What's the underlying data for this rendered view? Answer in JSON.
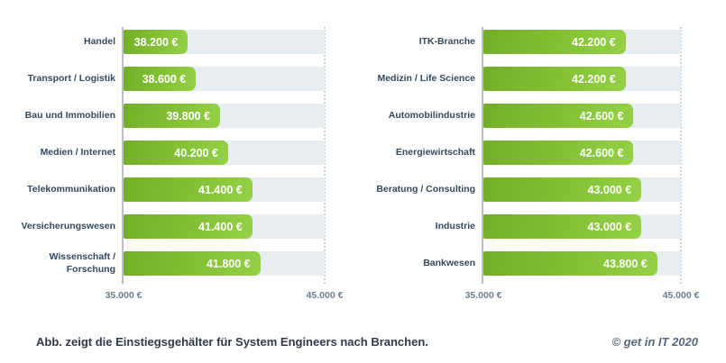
{
  "page": {
    "caption": "Abb. zeigt die Einstiegsgehälter für System Engineers nach Branchen.",
    "copyright": "© get in IT 2020"
  },
  "axis": {
    "min": 35000,
    "max": 45000,
    "min_label": "35.000 €",
    "max_label": "45.000 €"
  },
  "colors": {
    "bar_gradient_start": "#72ae29",
    "bar_gradient_end": "#95d147",
    "track": "#e8edf2",
    "category_text": "#34495e",
    "value_text": "#ffffff",
    "axis_text": "#6b7d8f",
    "caption_text": "#2f3b49",
    "copyright_text": "#55677c"
  },
  "chart_data": [
    {
      "type": "bar",
      "orientation": "horizontal",
      "title": "",
      "categories": [
        "Handel",
        "Transport / Logistik",
        "Bau und Immobilien",
        "Medien / Internet",
        "Telekommunikation",
        "Versicherungswesen",
        "Wissenschaft / Forschung"
      ],
      "values": [
        38200,
        38600,
        39800,
        40200,
        41400,
        41400,
        41800
      ],
      "value_labels": [
        "38.200 €",
        "38.600 €",
        "39.800 €",
        "40.200 €",
        "41.400 €",
        "41.400 €",
        "41.800 €"
      ],
      "xlim": [
        35000,
        45000
      ],
      "xticks": [
        "35.000 €",
        "45.000 €"
      ],
      "grid": false,
      "legend": false
    },
    {
      "type": "bar",
      "orientation": "horizontal",
      "title": "",
      "categories": [
        "ITK-Branche",
        "Medizin / Life Science",
        "Automobilindustrie",
        "Energiewirtschaft",
        "Beratung / Consulting",
        "Industrie",
        "Bankwesen"
      ],
      "values": [
        42200,
        42200,
        42600,
        42600,
        43000,
        43000,
        43800
      ],
      "value_labels": [
        "42.200 €",
        "42.200 €",
        "42.600 €",
        "42.600 €",
        "43.000 €",
        "43.000 €",
        "43.800 €"
      ],
      "xlim": [
        35000,
        45000
      ],
      "xticks": [
        "35.000 €",
        "45.000 €"
      ],
      "grid": false,
      "legend": false
    }
  ]
}
